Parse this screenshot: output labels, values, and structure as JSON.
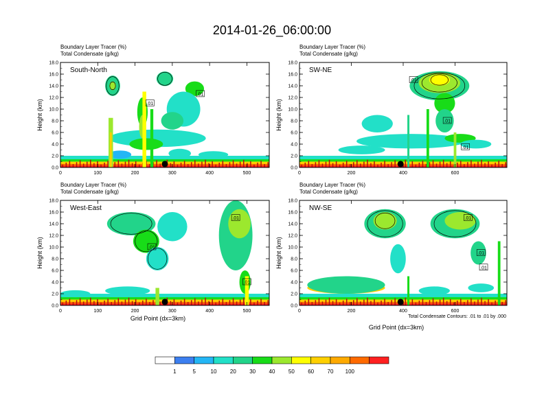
{
  "figure": {
    "title": "2014-01-26_06:00:00",
    "contour_note": "Total Condensate Contours: .01 to .01 by .000"
  },
  "colorbar": {
    "colors": [
      "#ffffff",
      "#3c7ff0",
      "#24b6f5",
      "#22e0c8",
      "#22d48a",
      "#18dc18",
      "#9ce82e",
      "#ffff00",
      "#ffd000",
      "#ffaa00",
      "#ff6a00",
      "#ff2020"
    ],
    "labels": [
      "1",
      "5",
      "10",
      "20",
      "30",
      "40",
      "50",
      "60",
      "70",
      "100"
    ]
  },
  "chart_data": [
    {
      "type": "heatmap",
      "panel_label": "South-North",
      "title_line1": "Boundary Layer Tracer   (%)",
      "title_line2": "Total Condensate   (g/kg)",
      "ylabel": "Height (km)",
      "xlabel": "",
      "xlim": [
        0,
        560
      ],
      "ylim": [
        0,
        18
      ],
      "xticks": [
        "0",
        "100",
        "200",
        "300",
        "400",
        "500"
      ],
      "xtick_values": [
        0,
        100,
        200,
        300,
        400,
        500
      ],
      "yticks": [
        "0.0",
        "2.0",
        "4.0",
        "6.0",
        "8.0",
        "10.0",
        "12.0",
        "14.0",
        "16.0",
        "18.0"
      ],
      "marker_x": 280,
      "contour_labels": [
        {
          "text": ".01",
          "x": 375,
          "y": 12.6
        },
        {
          "text": ".01",
          "x": 240,
          "y": 11.0
        }
      ],
      "blobs": [
        {
          "x": 140,
          "y": 14.0,
          "w": 40,
          "h": 3.5,
          "c": 4
        },
        {
          "x": 140,
          "y": 14.0,
          "w": 18,
          "h": 1.5,
          "c": 6
        },
        {
          "x": 280,
          "y": 15.2,
          "w": 45,
          "h": 2.5,
          "c": 4
        },
        {
          "x": 360,
          "y": 13.5,
          "w": 50,
          "h": 2.5,
          "c": 5
        },
        {
          "x": 330,
          "y": 10.0,
          "w": 90,
          "h": 6.0,
          "c": 3
        },
        {
          "x": 300,
          "y": 8.0,
          "w": 60,
          "h": 3.0,
          "c": 4
        },
        {
          "x": 260,
          "y": 5.0,
          "w": 260,
          "h": 3.0,
          "c": 3
        },
        {
          "x": 230,
          "y": 4.0,
          "w": 90,
          "h": 2.0,
          "c": 5
        },
        {
          "x": 220,
          "y": 9.5,
          "w": 28,
          "h": 5.0,
          "c": 5
        },
        {
          "x": 220,
          "y": 7.0,
          "w": 18,
          "h": 4.0,
          "c": 6
        },
        {
          "x": 160,
          "y": 2.2,
          "w": 60,
          "h": 1.4,
          "c": 2
        },
        {
          "x": 320,
          "y": 2.4,
          "w": 60,
          "h": 1.6,
          "c": 3
        },
        {
          "x": 410,
          "y": 2.2,
          "w": 80,
          "h": 1.2,
          "c": 3
        }
      ],
      "columns": [
        {
          "x": 135,
          "top": 8.5,
          "w": 12,
          "c": 6
        },
        {
          "x": 135,
          "top": 6.0,
          "w": 5,
          "c": 8
        },
        {
          "x": 225,
          "top": 13.0,
          "w": 10,
          "c": 7
        },
        {
          "x": 245,
          "top": 10.0,
          "w": 8,
          "c": 5
        }
      ]
    },
    {
      "type": "heatmap",
      "panel_label": "SW-NE",
      "title_line1": "Boundary Layer Tracer   (%)",
      "title_line2": "Total Condensate   (g/kg)",
      "ylabel": "Height (km)",
      "xlabel": "",
      "xlim": [
        0,
        800
      ],
      "ylim": [
        0,
        18
      ],
      "xticks": [
        "0",
        "200",
        "400",
        "600"
      ],
      "xtick_values": [
        0,
        200,
        400,
        600
      ],
      "yticks": [
        "0.0",
        "2.0",
        "4.0",
        "6.0",
        "8.0",
        "10.0",
        "12.0",
        "14.0",
        "16.0",
        "18.0"
      ],
      "marker_x": 390,
      "contour_labels": [
        {
          "text": ".01",
          "x": 440,
          "y": 15.0
        },
        {
          "text": ".01",
          "x": 570,
          "y": 8.0
        },
        {
          "text": ".01",
          "x": 640,
          "y": 3.5
        }
      ],
      "blobs": [
        {
          "x": 540,
          "y": 14.0,
          "w": 230,
          "h": 5.0,
          "c": 4
        },
        {
          "x": 540,
          "y": 14.5,
          "w": 160,
          "h": 3.5,
          "c": 6
        },
        {
          "x": 540,
          "y": 15.0,
          "w": 80,
          "h": 2.0,
          "c": 7
        },
        {
          "x": 560,
          "y": 11.0,
          "w": 80,
          "h": 3.5,
          "c": 5
        },
        {
          "x": 560,
          "y": 8.0,
          "w": 70,
          "h": 4.0,
          "c": 4
        },
        {
          "x": 430,
          "y": 4.5,
          "w": 420,
          "h": 2.5,
          "c": 3
        },
        {
          "x": 620,
          "y": 5.0,
          "w": 120,
          "h": 1.5,
          "c": 5
        },
        {
          "x": 680,
          "y": 4.0,
          "w": 120,
          "h": 1.5,
          "c": 3
        },
        {
          "x": 300,
          "y": 7.5,
          "w": 120,
          "h": 3.0,
          "c": 3
        },
        {
          "x": 240,
          "y": 3.0,
          "w": 180,
          "h": 1.5,
          "c": 3
        }
      ],
      "columns": [
        {
          "x": 495,
          "top": 10.0,
          "w": 10,
          "c": 5
        },
        {
          "x": 600,
          "top": 6.0,
          "w": 10,
          "c": 6
        },
        {
          "x": 420,
          "top": 9.0,
          "w": 8,
          "c": 4
        }
      ]
    },
    {
      "type": "heatmap",
      "panel_label": "West-East",
      "title_line1": "Boundary Layer Tracer   (%)",
      "title_line2": "Total Condensate   (g/kg)",
      "ylabel": "Height (km)",
      "xlabel": "Grid Point (dx=3km)",
      "xlim": [
        0,
        560
      ],
      "ylim": [
        0,
        18
      ],
      "xticks": [
        "0",
        "100",
        "200",
        "300",
        "400",
        "500"
      ],
      "xtick_values": [
        0,
        100,
        200,
        300,
        400,
        500
      ],
      "yticks": [
        "0.0",
        "2.0",
        "4.0",
        "6.0",
        "8.0",
        "10.0",
        "12.0",
        "14.0",
        "16.0",
        "18.0"
      ],
      "marker_x": 280,
      "contour_labels": [
        {
          "text": ".01",
          "x": 470,
          "y": 15.0
        },
        {
          "text": ".01",
          "x": 245,
          "y": 10.0
        },
        {
          "text": ".01",
          "x": 500,
          "y": 4.0
        }
      ],
      "blobs": [
        {
          "x": 190,
          "y": 14.0,
          "w": 130,
          "h": 4.0,
          "c": 4
        },
        {
          "x": 230,
          "y": 11.0,
          "w": 70,
          "h": 4.0,
          "c": 5
        },
        {
          "x": 260,
          "y": 8.0,
          "w": 60,
          "h": 4.0,
          "c": 3
        },
        {
          "x": 300,
          "y": 13.5,
          "w": 80,
          "h": 5.0,
          "c": 3
        },
        {
          "x": 470,
          "y": 12.0,
          "w": 90,
          "h": 12.0,
          "c": 4
        },
        {
          "x": 480,
          "y": 14.0,
          "w": 60,
          "h": 5.0,
          "c": 6
        },
        {
          "x": 495,
          "y": 4.0,
          "w": 30,
          "h": 4.0,
          "c": 5
        },
        {
          "x": 40,
          "y": 2.0,
          "w": 80,
          "h": 1.2,
          "c": 3
        },
        {
          "x": 180,
          "y": 2.5,
          "w": 120,
          "h": 1.5,
          "c": 3
        }
      ],
      "columns": [
        {
          "x": 260,
          "top": 3.0,
          "w": 10,
          "c": 6
        },
        {
          "x": 500,
          "top": 5.0,
          "w": 10,
          "c": 7
        }
      ]
    },
    {
      "type": "heatmap",
      "panel_label": "NW-SE",
      "title_line1": "Boundary Layer Tracer   (%)",
      "title_line2": "Total Condensate   (g/kg)",
      "ylabel": "Height (km)",
      "xlabel": "Grid Point (dx=3km)",
      "xlim": [
        0,
        800
      ],
      "ylim": [
        0,
        18
      ],
      "xticks": [
        "0",
        "200",
        "400",
        "600"
      ],
      "xtick_values": [
        0,
        200,
        400,
        600
      ],
      "yticks": [
        "0.0",
        "2.0",
        "4.0",
        "6.0",
        "8.0",
        "10.0",
        "12.0",
        "14.0",
        "16.0",
        "18.0"
      ],
      "marker_x": 390,
      "contour_labels": [
        {
          "text": ".01",
          "x": 650,
          "y": 15.0
        },
        {
          "text": ".01",
          "x": 700,
          "y": 9.0
        },
        {
          "text": ".01",
          "x": 710,
          "y": 6.5
        }
      ],
      "blobs": [
        {
          "x": 330,
          "y": 14.0,
          "w": 160,
          "h": 5.0,
          "c": 4
        },
        {
          "x": 330,
          "y": 14.5,
          "w": 90,
          "h": 3.0,
          "c": 6
        },
        {
          "x": 600,
          "y": 14.0,
          "w": 190,
          "h": 5.0,
          "c": 4
        },
        {
          "x": 620,
          "y": 14.5,
          "w": 120,
          "h": 3.0,
          "c": 6
        },
        {
          "x": 380,
          "y": 8.0,
          "w": 60,
          "h": 5.0,
          "c": 3
        },
        {
          "x": 690,
          "y": 9.0,
          "w": 60,
          "h": 4.0,
          "c": 4
        },
        {
          "x": 180,
          "y": 3.0,
          "w": 300,
          "h": 2.0,
          "c": 8
        },
        {
          "x": 180,
          "y": 3.5,
          "w": 300,
          "h": 3.0,
          "c": 4
        },
        {
          "x": 520,
          "y": 2.5,
          "w": 120,
          "h": 1.5,
          "c": 3
        },
        {
          "x": 700,
          "y": 3.0,
          "w": 100,
          "h": 1.5,
          "c": 3
        }
      ],
      "columns": [
        {
          "x": 770,
          "top": 11.0,
          "w": 10,
          "c": 5
        },
        {
          "x": 420,
          "top": 5.0,
          "w": 8,
          "c": 5
        }
      ]
    }
  ]
}
